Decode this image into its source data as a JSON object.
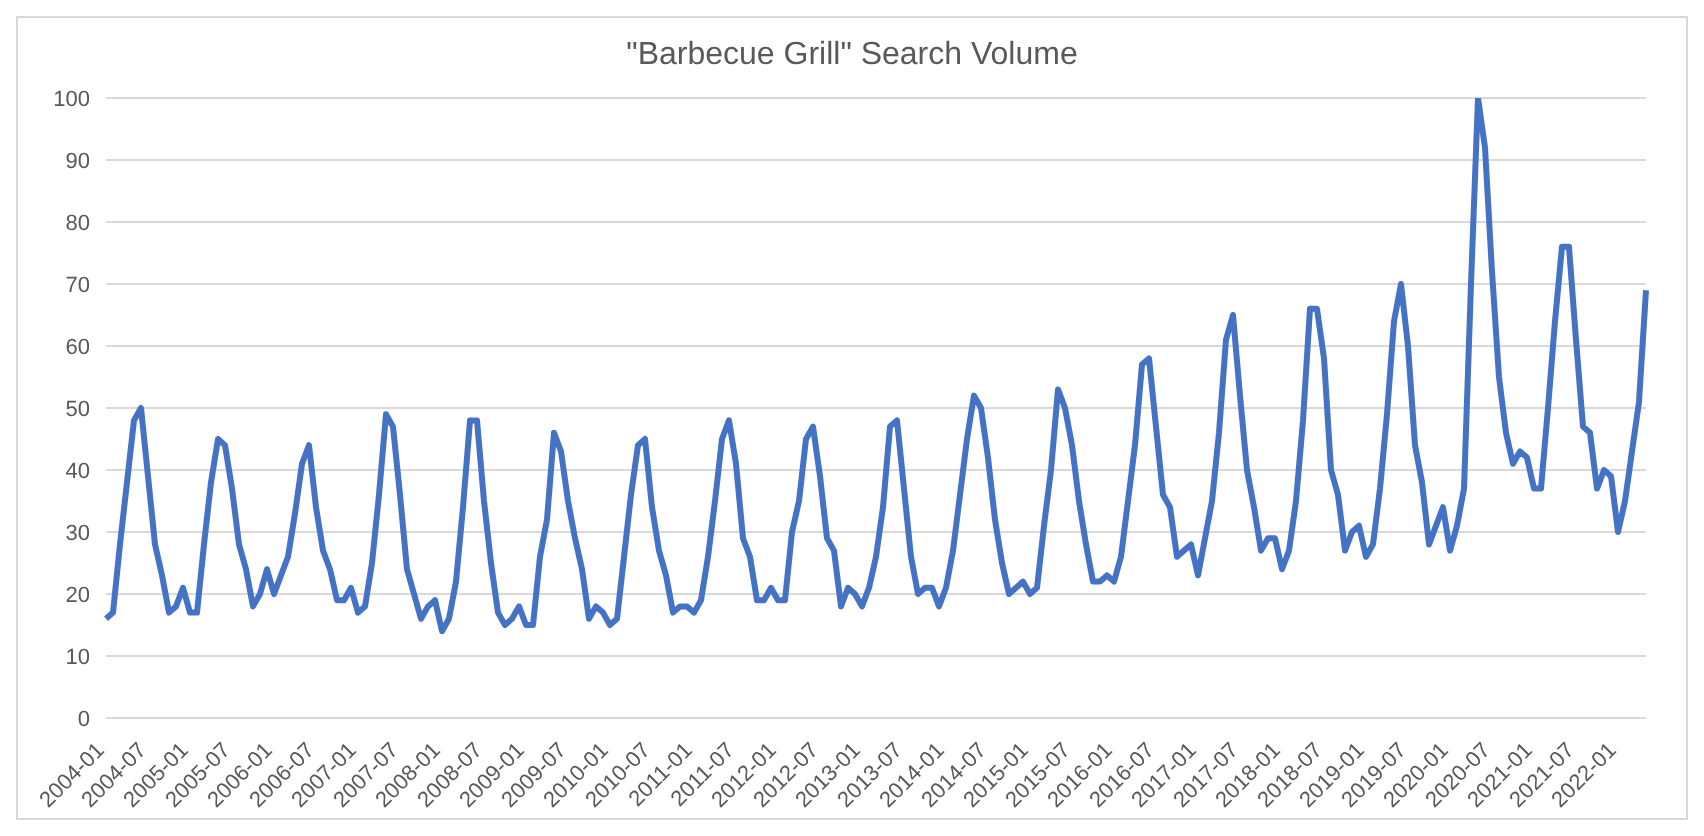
{
  "chart_data": {
    "type": "line",
    "title": "\"Barbecue Grill\" Search Volume",
    "categories": [
      "2004-01",
      null,
      null,
      null,
      null,
      null,
      "2004-07",
      null,
      null,
      null,
      null,
      null,
      "2005-01",
      null,
      null,
      null,
      null,
      null,
      "2005-07",
      null,
      null,
      null,
      null,
      null,
      "2006-01",
      null,
      null,
      null,
      null,
      null,
      "2006-07",
      null,
      null,
      null,
      null,
      null,
      "2007-01",
      null,
      null,
      null,
      null,
      null,
      "2007-07",
      null,
      null,
      null,
      null,
      null,
      "2008-01",
      null,
      null,
      null,
      null,
      null,
      "2008-07",
      null,
      null,
      null,
      null,
      null,
      "2009-01",
      null,
      null,
      null,
      null,
      null,
      "2009-07",
      null,
      null,
      null,
      null,
      null,
      "2010-01",
      null,
      null,
      null,
      null,
      null,
      "2010-07",
      null,
      null,
      null,
      null,
      null,
      "2011-01",
      null,
      null,
      null,
      null,
      null,
      "2011-07",
      null,
      null,
      null,
      null,
      null,
      "2012-01",
      null,
      null,
      null,
      null,
      null,
      "2012-07",
      null,
      null,
      null,
      null,
      null,
      "2013-01",
      null,
      null,
      null,
      null,
      null,
      "2013-07",
      null,
      null,
      null,
      null,
      null,
      "2014-01",
      null,
      null,
      null,
      null,
      null,
      "2014-07",
      null,
      null,
      null,
      null,
      null,
      "2015-01",
      null,
      null,
      null,
      null,
      null,
      "2015-07",
      null,
      null,
      null,
      null,
      null,
      "2016-01",
      null,
      null,
      null,
      null,
      null,
      "2016-07",
      null,
      null,
      null,
      null,
      null,
      "2017-01",
      null,
      null,
      null,
      null,
      null,
      "2017-07",
      null,
      null,
      null,
      null,
      null,
      "2018-01",
      null,
      null,
      null,
      null,
      null,
      "2018-07",
      null,
      null,
      null,
      null,
      null,
      "2019-01",
      null,
      null,
      null,
      null,
      null,
      "2019-07",
      null,
      null,
      null,
      null,
      null,
      "2020-01",
      null,
      null,
      null,
      null,
      null,
      "2020-07",
      null,
      null,
      null,
      null,
      null,
      "2021-01",
      null,
      null,
      null,
      null,
      null,
      "2021-07",
      null,
      null,
      null,
      null,
      null,
      "2022-01",
      null,
      null,
      null,
      null
    ],
    "series": [
      {
        "color": "#4472c4",
        "values": [
          16,
          17,
          28,
          38,
          48,
          50,
          39,
          28,
          23,
          17,
          18,
          21,
          17,
          17,
          28,
          38,
          45,
          44,
          37,
          28,
          24,
          18,
          20,
          24,
          20,
          23,
          26,
          33,
          41,
          44,
          34,
          27,
          24,
          19,
          19,
          21,
          17,
          18,
          25,
          36,
          49,
          47,
          36,
          24,
          20,
          16,
          18,
          19,
          14,
          16,
          22,
          34,
          48,
          48,
          35,
          25,
          17,
          15,
          16,
          18,
          15,
          15,
          26,
          32,
          46,
          43,
          35,
          29,
          24,
          16,
          18,
          17,
          15,
          16,
          26,
          36,
          44,
          45,
          34,
          27,
          23,
          17,
          18,
          18,
          17,
          19,
          26,
          35,
          45,
          48,
          41,
          29,
          26,
          19,
          19,
          21,
          19,
          19,
          30,
          35,
          45,
          47,
          39,
          29,
          27,
          18,
          21,
          20,
          18,
          21,
          26,
          34,
          47,
          48,
          37,
          26,
          20,
          21,
          21,
          18,
          21,
          27,
          36,
          45,
          52,
          50,
          42,
          32,
          25,
          20,
          21,
          22,
          20,
          21,
          31,
          40,
          53,
          50,
          44,
          35,
          28,
          22,
          22,
          23,
          22,
          26,
          35,
          44,
          57,
          58,
          47,
          36,
          34,
          26,
          27,
          28,
          23,
          29,
          35,
          46,
          61,
          65,
          52,
          40,
          34,
          27,
          29,
          29,
          24,
          27,
          35,
          48,
          66,
          66,
          58,
          40,
          36,
          27,
          30,
          31,
          26,
          28,
          37,
          49,
          64,
          70,
          60,
          44,
          38,
          28,
          31,
          34,
          27,
          31,
          37,
          70,
          100,
          92,
          72,
          55,
          46,
          41,
          43,
          42,
          37,
          37,
          50,
          64,
          76,
          76,
          61,
          47,
          46,
          37,
          40,
          39,
          30,
          35,
          43,
          51,
          69
        ]
      }
    ],
    "ylim": [
      0,
      100
    ],
    "yticks": [
      0,
      10,
      20,
      30,
      40,
      50,
      60,
      70,
      80,
      90,
      100
    ],
    "grid": "y",
    "legend": false,
    "marker": "none",
    "line_style": "solid"
  }
}
